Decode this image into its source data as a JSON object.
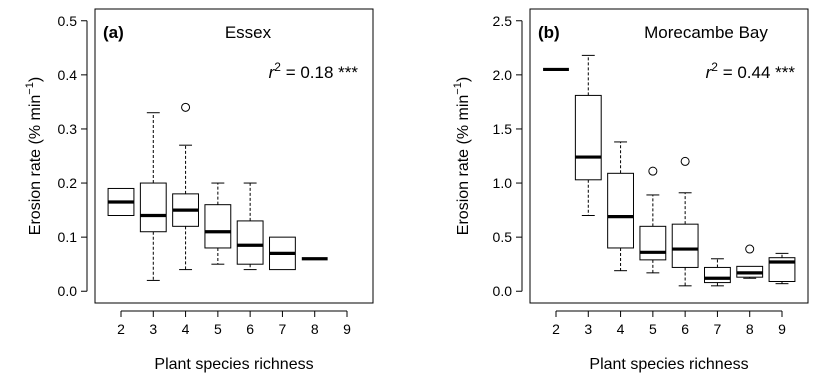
{
  "chart_data": [
    {
      "type": "boxplot",
      "panel_label": "(a)",
      "title": "Essex",
      "annotation": {
        "prefix": "r",
        "sup": "2",
        "text": " = 0.18 ***"
      },
      "xlabel": "Plant species richness",
      "ylabel": "Erosion rate (% min",
      "ylabel_sup": "−1",
      "ylabel_end": ")",
      "categories": [
        "2",
        "3",
        "4",
        "5",
        "6",
        "7",
        "8",
        "9"
      ],
      "ylim": [
        0,
        0.5
      ],
      "yticks": [
        "0.0",
        "0.1",
        "0.2",
        "0.3",
        "0.4",
        "0.5"
      ],
      "ytick_values": [
        0,
        0.1,
        0.2,
        0.3,
        0.4,
        0.5
      ],
      "boxes": [
        {
          "x": "2",
          "min": 0.14,
          "q1": 0.14,
          "median": 0.165,
          "q3": 0.19,
          "max": 0.19,
          "outliers": []
        },
        {
          "x": "3",
          "min": 0.02,
          "q1": 0.11,
          "median": 0.14,
          "q3": 0.2,
          "max": 0.33,
          "outliers": []
        },
        {
          "x": "4",
          "min": 0.04,
          "q1": 0.12,
          "median": 0.15,
          "q3": 0.18,
          "max": 0.27,
          "outliers": [
            0.34
          ]
        },
        {
          "x": "5",
          "min": 0.05,
          "q1": 0.08,
          "median": 0.11,
          "q3": 0.16,
          "max": 0.2,
          "outliers": []
        },
        {
          "x": "6",
          "min": 0.04,
          "q1": 0.05,
          "median": 0.085,
          "q3": 0.13,
          "max": 0.2,
          "outliers": []
        },
        {
          "x": "7",
          "min": 0.04,
          "q1": 0.04,
          "median": 0.07,
          "q3": 0.1,
          "max": 0.1,
          "outliers": []
        },
        {
          "x": "8",
          "min": 0.06,
          "q1": 0.06,
          "median": 0.06,
          "q3": 0.06,
          "max": 0.06,
          "outliers": []
        }
      ]
    },
    {
      "type": "boxplot",
      "panel_label": "(b)",
      "title": "Morecambe Bay",
      "annotation": {
        "prefix": "r",
        "sup": "2",
        "text": " = 0.44 ***"
      },
      "xlabel": "Plant species richness",
      "ylabel": "Erosion rate (% min",
      "ylabel_sup": "−1",
      "ylabel_end": ")",
      "categories": [
        "2",
        "3",
        "4",
        "5",
        "6",
        "7",
        "8",
        "9"
      ],
      "ylim": [
        0,
        2.5
      ],
      "yticks": [
        "0.0",
        "0.5",
        "1.0",
        "1.5",
        "2.0",
        "2.5"
      ],
      "ytick_values": [
        0,
        0.5,
        1.0,
        1.5,
        2.0,
        2.5
      ],
      "boxes": [
        {
          "x": "2",
          "min": 2.05,
          "q1": 2.05,
          "median": 2.05,
          "q3": 2.05,
          "max": 2.05,
          "outliers": []
        },
        {
          "x": "3",
          "min": 0.7,
          "q1": 1.03,
          "median": 1.24,
          "q3": 1.81,
          "max": 2.18,
          "outliers": []
        },
        {
          "x": "4",
          "min": 0.19,
          "q1": 0.4,
          "median": 0.69,
          "q3": 1.09,
          "max": 1.38,
          "outliers": []
        },
        {
          "x": "5",
          "min": 0.17,
          "q1": 0.29,
          "median": 0.36,
          "q3": 0.6,
          "max": 0.89,
          "outliers": [
            1.11
          ]
        },
        {
          "x": "6",
          "min": 0.05,
          "q1": 0.22,
          "median": 0.39,
          "q3": 0.62,
          "max": 0.91,
          "outliers": [
            1.2
          ]
        },
        {
          "x": "7",
          "min": 0.05,
          "q1": 0.08,
          "median": 0.12,
          "q3": 0.22,
          "max": 0.3,
          "outliers": []
        },
        {
          "x": "8",
          "min": 0.12,
          "q1": 0.13,
          "median": 0.17,
          "q3": 0.23,
          "max": 0.23,
          "outliers": [
            0.39
          ]
        },
        {
          "x": "9",
          "min": 0.07,
          "q1": 0.09,
          "median": 0.27,
          "q3": 0.31,
          "max": 0.35,
          "outliers": []
        }
      ]
    }
  ]
}
